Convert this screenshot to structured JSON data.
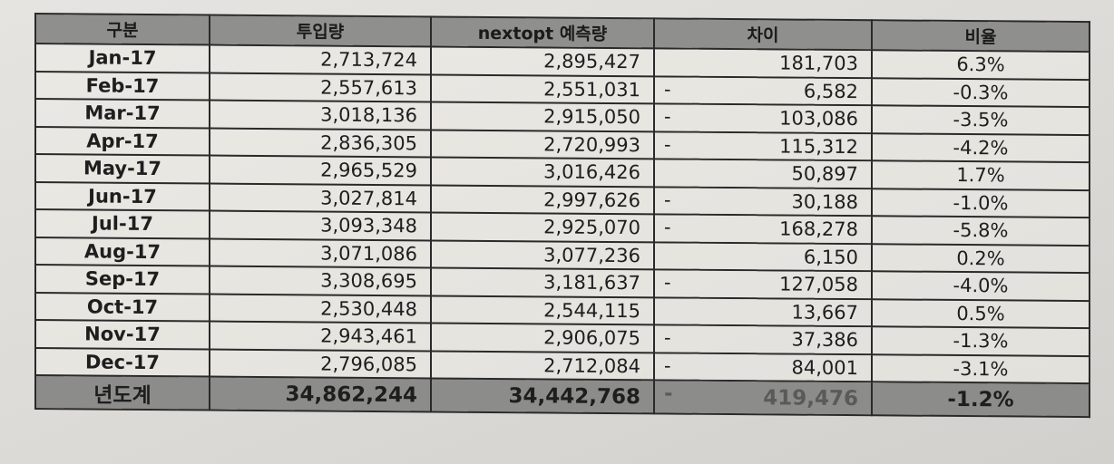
{
  "headers": [
    "구분",
    "투입량",
    "nextopt 예측량",
    "차이",
    "비율"
  ],
  "rows": [
    {
      "month": "Jan-17",
      "input": "2,713,724",
      "forecast": "2,895,427",
      "sign": "",
      "diff": "181,703",
      "ratio": "6.3%"
    },
    {
      "month": "Feb-17",
      "input": "2,557,613",
      "forecast": "2,551,031",
      "sign": "-",
      "diff": "6,582",
      "ratio": "-0.3%"
    },
    {
      "month": "Mar-17",
      "input": "3,018,136",
      "forecast": "2,915,050",
      "sign": "-",
      "diff": "103,086",
      "ratio": "-3.5%"
    },
    {
      "month": "Apr-17",
      "input": "2,836,305",
      "forecast": "2,720,993",
      "sign": "-",
      "diff": "115,312",
      "ratio": "-4.2%"
    },
    {
      "month": "May-17",
      "input": "2,965,529",
      "forecast": "3,016,426",
      "sign": "",
      "diff": "50,897",
      "ratio": "1.7%"
    },
    {
      "month": "Jun-17",
      "input": "3,027,814",
      "forecast": "2,997,626",
      "sign": "-",
      "diff": "30,188",
      "ratio": "-1.0%"
    },
    {
      "month": "Jul-17",
      "input": "3,093,348",
      "forecast": "2,925,070",
      "sign": "-",
      "diff": "168,278",
      "ratio": "-5.8%"
    },
    {
      "month": "Aug-17",
      "input": "3,071,086",
      "forecast": "3,077,236",
      "sign": "",
      "diff": "6,150",
      "ratio": "0.2%"
    },
    {
      "month": "Sep-17",
      "input": "3,308,695",
      "forecast": "3,181,637",
      "sign": "-",
      "diff": "127,058",
      "ratio": "-4.0%"
    },
    {
      "month": "Oct-17",
      "input": "2,530,448",
      "forecast": "2,544,115",
      "sign": "",
      "diff": "13,667",
      "ratio": "0.5%"
    },
    {
      "month": "Nov-17",
      "input": "2,943,461",
      "forecast": "2,906,075",
      "sign": "-",
      "diff": "37,386",
      "ratio": "-1.3%"
    },
    {
      "month": "Dec-17",
      "input": "2,796,085",
      "forecast": "2,712,084",
      "sign": "-",
      "diff": "84,001",
      "ratio": "-3.1%"
    }
  ],
  "total": {
    "label": "년도계",
    "input": "34,862,244",
    "forecast": "34,442,768",
    "sign": "-",
    "diff": "419,476",
    "ratio": "-1.2%"
  },
  "colors": {
    "header_bg": "#8f8f8d",
    "total_bg": "#8c8c8a",
    "border": "#2a2a2a"
  }
}
